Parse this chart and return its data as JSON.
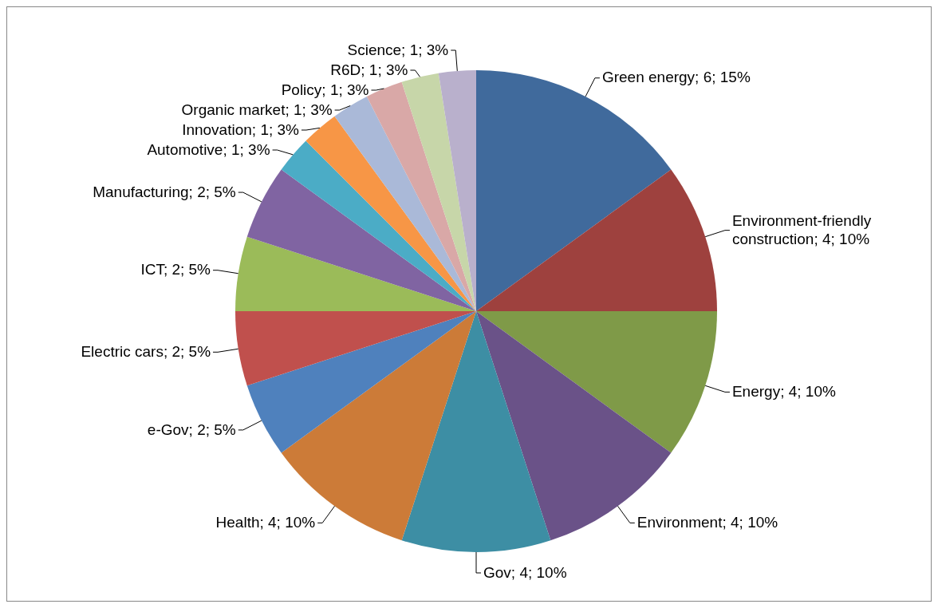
{
  "chart_data": {
    "type": "pie",
    "categories": [
      "Green energy",
      "Environment-friendly construction",
      "Energy",
      "Environment",
      "Gov",
      "Health",
      "e-Gov",
      "Electric cars",
      "ICT",
      "Manufacturing",
      "Automotive",
      "Innovation",
      "Organic market",
      "Policy",
      "R6D",
      "Science"
    ],
    "values": [
      6,
      4,
      4,
      4,
      4,
      4,
      2,
      2,
      2,
      2,
      1,
      1,
      1,
      1,
      1,
      1
    ],
    "value_labels": [
      "6; 15%",
      "4; 10%",
      "4; 10%",
      "4; 10%",
      "4; 10%",
      "4; 10%",
      "2; 5%",
      "2; 5%",
      "2; 5%",
      "2; 5%",
      "1; 3%",
      "1; 3%",
      "1; 3%",
      "1; 3%",
      "1; 3%",
      "1; 3%"
    ],
    "colors": [
      "#406a9c",
      "#9e413e",
      "#7f9a48",
      "#6a5288",
      "#3d8ea4",
      "#cc7b38",
      "#4f81bd",
      "#c0504d",
      "#9bbb59",
      "#8064a2",
      "#4bacc6",
      "#f79646",
      "#aab9d8",
      "#d9a8a7",
      "#c7d6a9",
      "#b9b0cc"
    ]
  }
}
